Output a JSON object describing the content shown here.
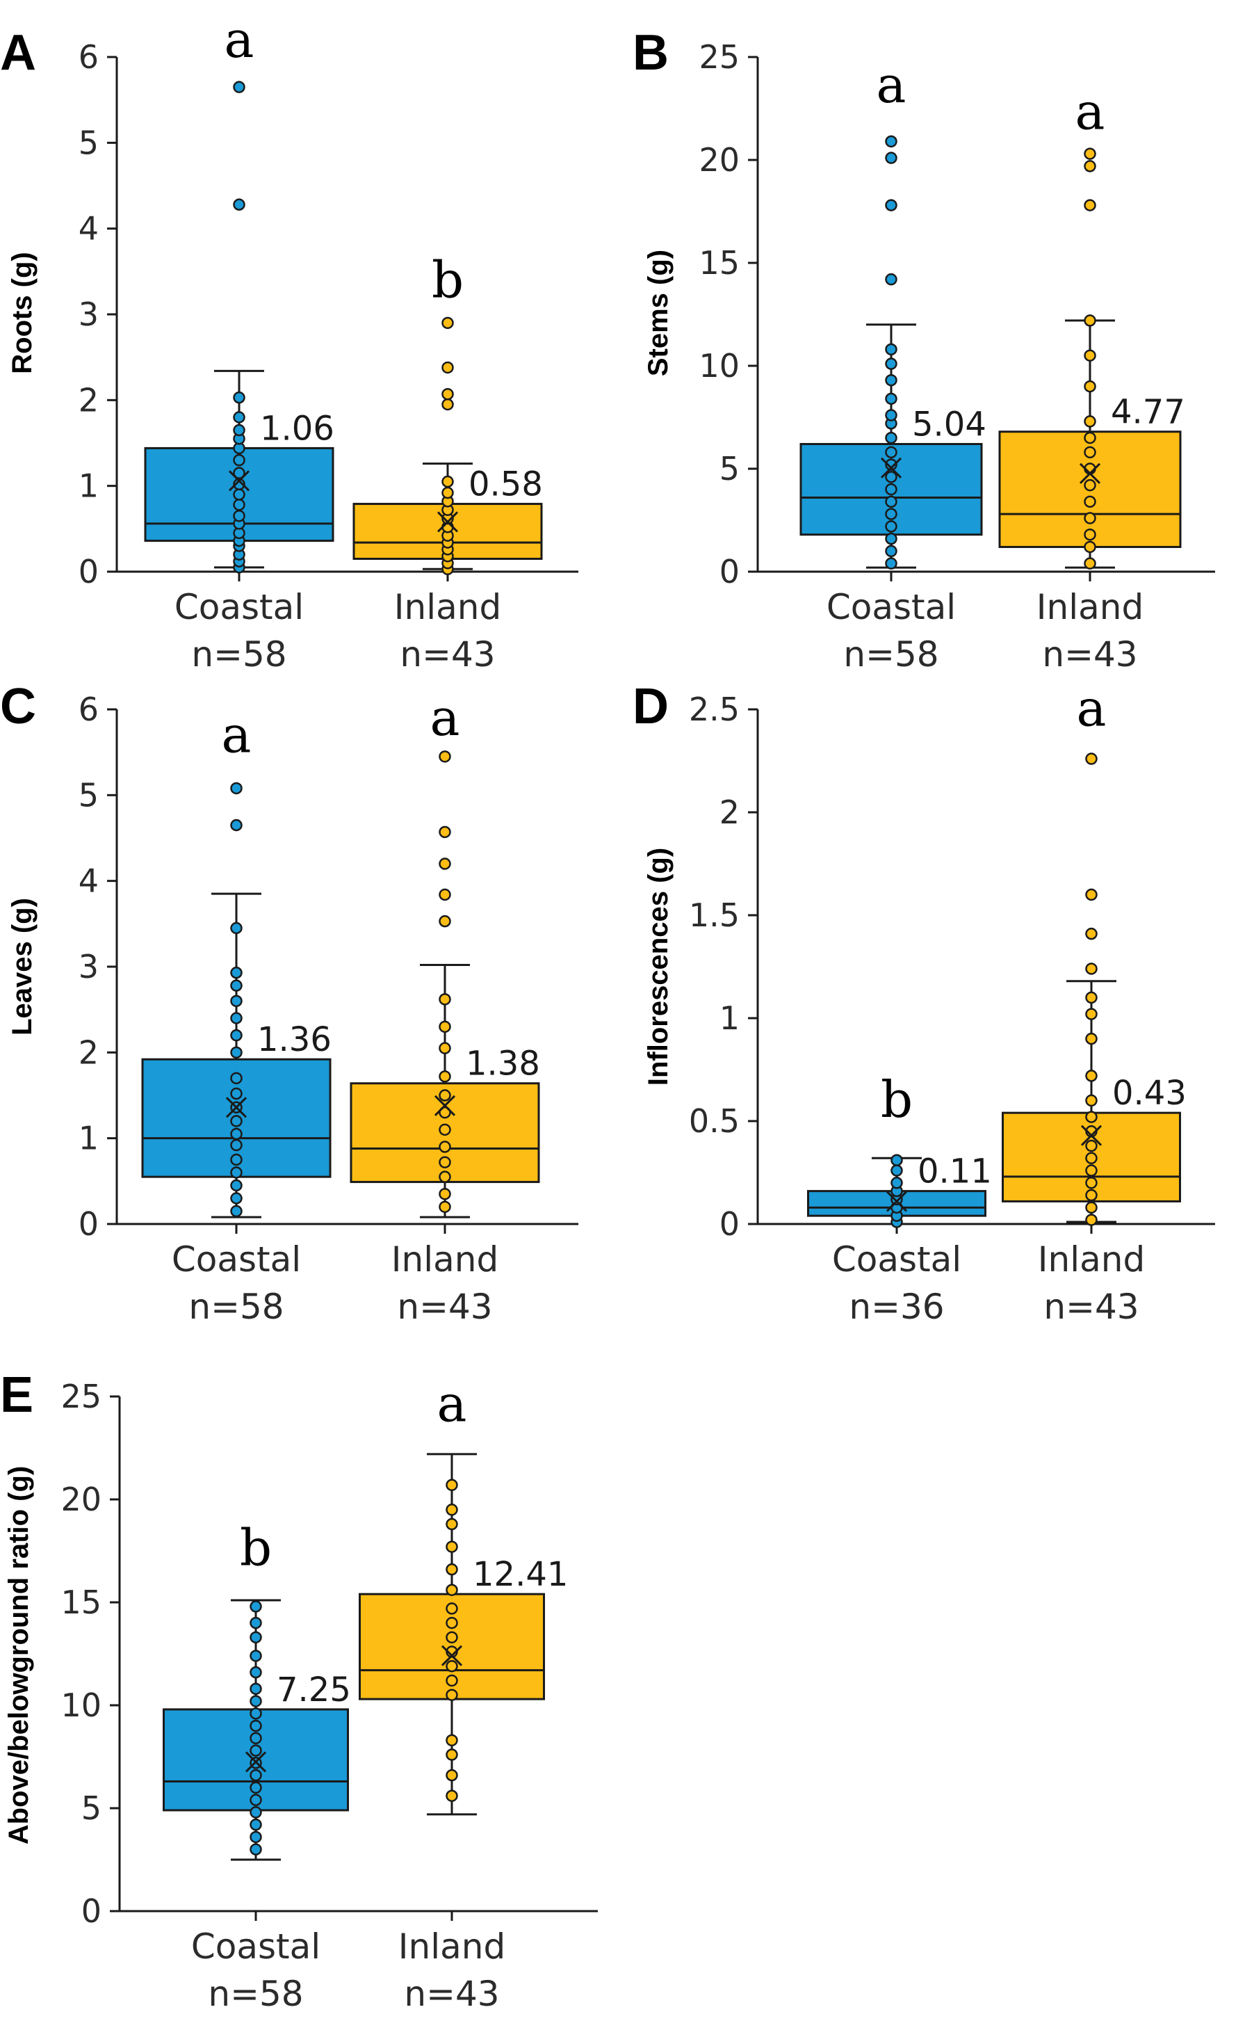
{
  "colors": {
    "coastal": "#1a9ad6",
    "inland": "#fdbd14",
    "line": "#1a1a1a"
  },
  "chart_data": [
    {
      "panel": "A",
      "type": "box",
      "ylabel": "Roots (g)",
      "ylim": [
        0,
        6
      ],
      "yticks": [
        0,
        1,
        2,
        3,
        4,
        5,
        6
      ],
      "groups": [
        {
          "category": "Coastal",
          "n_label": "n=58",
          "color": "#1a9ad6",
          "whisker_low": 0.05,
          "q1": 0.36,
          "median": 0.56,
          "q3": 1.44,
          "whisker_high": 2.34,
          "mean": 1.06,
          "mean_label": "1.06",
          "letter": "a",
          "letter_at": 6.0,
          "points": [
            0.05,
            0.12,
            0.2,
            0.3,
            0.36,
            0.45,
            0.56,
            0.65,
            0.78,
            0.9,
            1.02,
            1.15,
            1.3,
            1.44,
            1.55,
            1.65,
            1.8,
            2.03,
            4.28,
            5.65
          ]
        },
        {
          "category": "Inland",
          "n_label": "n=43",
          "color": "#fdbd14",
          "whisker_low": 0.03,
          "q1": 0.15,
          "median": 0.34,
          "q3": 0.79,
          "whisker_high": 1.26,
          "mean": 0.58,
          "mean_label": "0.58",
          "letter": "b",
          "letter_at": 3.2,
          "points": [
            0.03,
            0.1,
            0.18,
            0.26,
            0.34,
            0.42,
            0.52,
            0.62,
            0.72,
            0.82,
            0.92,
            1.05,
            1.95,
            2.07,
            2.38,
            2.9
          ]
        }
      ]
    },
    {
      "panel": "B",
      "type": "box",
      "ylabel": "Stems (g)",
      "ylim": [
        0,
        25
      ],
      "yticks": [
        0,
        5,
        10,
        15,
        20,
        25
      ],
      "groups": [
        {
          "category": "Coastal",
          "n_label": "n=58",
          "color": "#1a9ad6",
          "whisker_low": 0.2,
          "q1": 1.8,
          "median": 3.6,
          "q3": 6.2,
          "whisker_high": 12.0,
          "mean": 5.04,
          "mean_label": "5.04",
          "letter": "a",
          "letter_at": 22.8,
          "points": [
            0.4,
            1.0,
            1.6,
            2.2,
            2.8,
            3.4,
            4.0,
            4.6,
            5.2,
            5.8,
            6.5,
            7.2,
            7.6,
            8.4,
            9.3,
            10.1,
            10.8,
            14.2,
            17.8,
            20.1,
            20.9
          ]
        },
        {
          "category": "Inland",
          "n_label": "n=43",
          "color": "#fdbd14",
          "whisker_low": 0.2,
          "q1": 1.2,
          "median": 2.8,
          "q3": 6.8,
          "whisker_high": 12.2,
          "mean": 4.77,
          "mean_label": "4.77",
          "letter": "a",
          "letter_at": 21.5,
          "points": [
            0.4,
            1.2,
            1.8,
            2.6,
            3.4,
            4.2,
            5.0,
            5.8,
            6.5,
            7.3,
            9.0,
            10.5,
            12.2,
            17.8,
            19.7,
            20.3
          ]
        }
      ]
    },
    {
      "panel": "C",
      "type": "box",
      "ylabel": "Leaves (g)",
      "ylim": [
        0,
        6
      ],
      "yticks": [
        0,
        1,
        2,
        3,
        4,
        5,
        6
      ],
      "groups": [
        {
          "category": "Coastal",
          "n_label": "n=58",
          "color": "#1a9ad6",
          "whisker_low": 0.08,
          "q1": 0.55,
          "median": 1.0,
          "q3": 1.92,
          "whisker_high": 3.85,
          "mean": 1.36,
          "mean_label": "1.36",
          "letter": "a",
          "letter_at": 5.5,
          "points": [
            0.15,
            0.3,
            0.45,
            0.6,
            0.75,
            0.92,
            1.05,
            1.2,
            1.36,
            1.52,
            1.7,
            2.0,
            2.2,
            2.4,
            2.6,
            2.78,
            2.93,
            3.45,
            4.65,
            5.08
          ]
        },
        {
          "category": "Inland",
          "n_label": "n=43",
          "color": "#fdbd14",
          "whisker_low": 0.08,
          "q1": 0.49,
          "median": 0.88,
          "q3": 1.64,
          "whisker_high": 3.02,
          "mean": 1.38,
          "mean_label": "1.38",
          "letter": "a",
          "letter_at": 5.7,
          "points": [
            0.2,
            0.35,
            0.55,
            0.72,
            0.9,
            1.1,
            1.3,
            1.5,
            1.72,
            2.05,
            2.3,
            2.62,
            3.53,
            3.84,
            4.2,
            4.57,
            5.45
          ]
        }
      ]
    },
    {
      "panel": "D",
      "type": "box",
      "ylabel": "Inflorescences (g)",
      "ylim": [
        0,
        2.5
      ],
      "yticks": [
        0,
        0.5,
        1,
        1.5,
        2,
        2.5
      ],
      "groups": [
        {
          "category": "Coastal",
          "n_label": "n=36",
          "color": "#1a9ad6",
          "whisker_low": 0.0,
          "q1": 0.04,
          "median": 0.08,
          "q3": 0.16,
          "whisker_high": 0.32,
          "mean": 0.11,
          "mean_label": "0.11",
          "letter": "b",
          "letter_at": 0.52,
          "points": [
            0.01,
            0.04,
            0.08,
            0.12,
            0.16,
            0.2,
            0.26,
            0.31
          ]
        },
        {
          "category": "Inland",
          "n_label": "n=43",
          "color": "#fdbd14",
          "whisker_low": 0.01,
          "q1": 0.11,
          "median": 0.23,
          "q3": 0.54,
          "whisker_high": 1.18,
          "mean": 0.43,
          "mean_label": "0.43",
          "letter": "a",
          "letter_at": 2.42,
          "points": [
            0.02,
            0.08,
            0.14,
            0.2,
            0.26,
            0.32,
            0.38,
            0.45,
            0.52,
            0.6,
            0.72,
            0.9,
            1.02,
            1.1,
            1.24,
            1.41,
            1.6,
            2.26
          ]
        }
      ]
    },
    {
      "panel": "E",
      "type": "box",
      "ylabel": "Above/belowground ratio (g)",
      "ylim": [
        0,
        25
      ],
      "yticks": [
        0,
        5,
        10,
        15,
        20,
        25
      ],
      "groups": [
        {
          "category": "Coastal",
          "n_label": "n=58",
          "color": "#1a9ad6",
          "whisker_low": 2.5,
          "q1": 4.9,
          "median": 6.3,
          "q3": 9.8,
          "whisker_high": 15.1,
          "mean": 7.25,
          "mean_label": "7.25",
          "letter": "b",
          "letter_at": 16.8,
          "points": [
            3.0,
            3.6,
            4.2,
            4.8,
            5.4,
            6.0,
            6.6,
            7.2,
            7.8,
            8.4,
            9.0,
            9.6,
            10.2,
            10.8,
            11.6,
            12.4,
            13.3,
            14.0,
            14.8
          ]
        },
        {
          "category": "Inland",
          "n_label": "n=43",
          "color": "#fdbd14",
          "whisker_low": 4.7,
          "q1": 10.3,
          "median": 11.7,
          "q3": 15.4,
          "whisker_high": 22.2,
          "mean": 12.41,
          "mean_label": "12.41",
          "letter": "a",
          "letter_at": 23.8,
          "points": [
            5.6,
            6.6,
            7.6,
            8.3,
            10.5,
            11.2,
            11.9,
            12.6,
            13.3,
            14.0,
            14.7,
            15.6,
            16.6,
            17.7,
            18.8,
            19.5,
            20.7
          ]
        }
      ]
    }
  ]
}
